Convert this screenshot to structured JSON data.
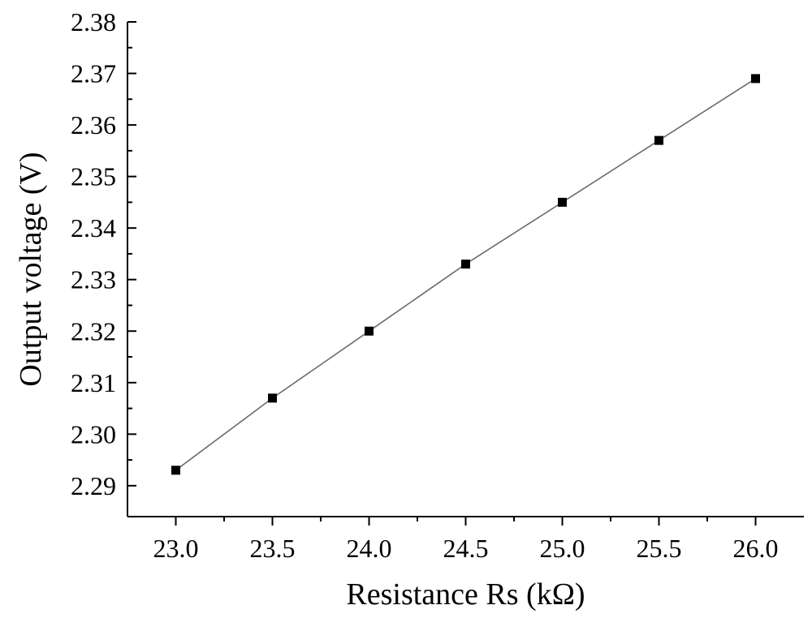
{
  "chart_data": {
    "type": "scatter",
    "title": "",
    "xlabel": "Resistance Rs (kΩ)",
    "ylabel": "Output voltage (V)",
    "xlim": [
      22.75,
      26.25
    ],
    "ylim": [
      2.284,
      2.38
    ],
    "x_ticks": [
      23.0,
      23.5,
      24.0,
      24.5,
      25.0,
      25.5,
      26.0
    ],
    "x_tick_labels": [
      "23.0",
      "23.5",
      "24.0",
      "24.5",
      "25.0",
      "25.5",
      "26.0"
    ],
    "y_ticks": [
      2.29,
      2.3,
      2.31,
      2.32,
      2.33,
      2.34,
      2.35,
      2.36,
      2.37,
      2.38
    ],
    "y_tick_labels": [
      "2.29",
      "2.30",
      "2.31",
      "2.32",
      "2.33",
      "2.34",
      "2.35",
      "2.36",
      "2.37",
      "2.38"
    ],
    "grid": false,
    "marker": "square",
    "connected_line": true,
    "series": [
      {
        "x": [
          23.0,
          23.5,
          24.0,
          24.5,
          25.0,
          25.5,
          26.0
        ],
        "y": [
          2.293,
          2.307,
          2.32,
          2.333,
          2.345,
          2.357,
          2.369
        ]
      }
    ],
    "colors": {
      "marker": "#000000",
      "line": "#6b6b6b",
      "axes": "#000000"
    }
  }
}
